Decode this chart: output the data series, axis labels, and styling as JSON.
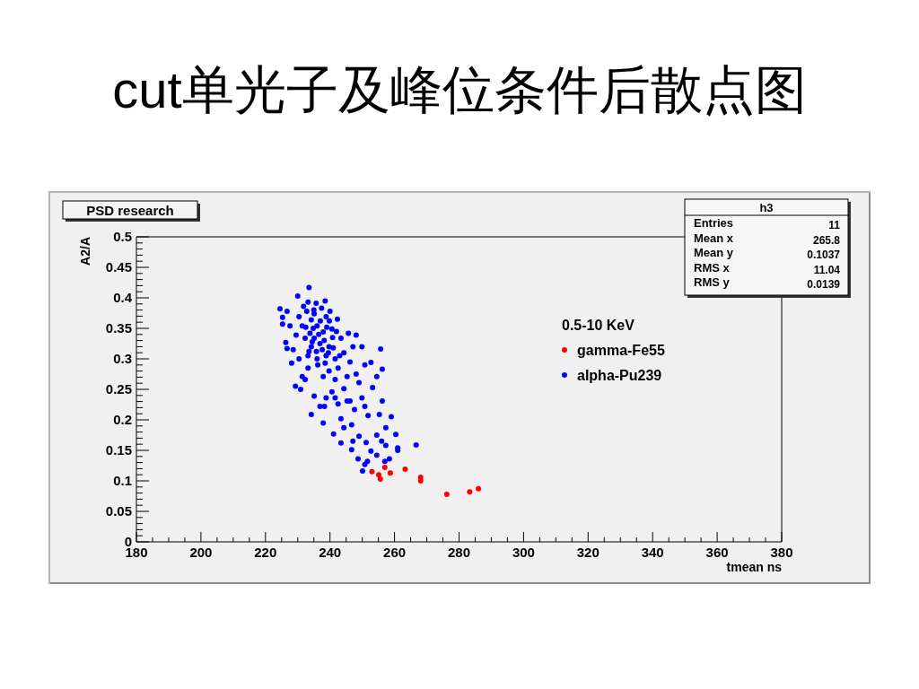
{
  "chart_data": {
    "type": "scatter",
    "title": "cut单光子及峰位条件后散点图",
    "subtitle": "PSD research",
    "xlabel": "tmean ns",
    "ylabel": "A2/A",
    "legend_title": "0.5-10 KeV",
    "annotations": [
      "h3",
      "Entries",
      "11",
      "Mean x",
      "265.8",
      "Mean y",
      "0.1037",
      "RMS x",
      "11.04",
      "RMS y",
      "0.0139"
    ],
    "xlim": [
      180,
      380
    ],
    "ylim": [
      0,
      0.5
    ],
    "xticks": [
      180,
      {
        "value": 185,
        "label": null
      },
      {
        "value": 190,
        "label": null
      },
      {
        "value": 195,
        "label": null
      },
      200,
      {
        "value": 205,
        "label": null
      },
      {
        "value": 210,
        "label": null
      },
      {
        "value": 215,
        "label": null
      },
      220,
      {
        "value": 225,
        "label": null
      },
      {
        "value": 230,
        "label": null
      },
      {
        "value": 235,
        "label": null
      },
      240,
      {
        "value": 245,
        "label": null
      },
      {
        "value": 250,
        "label": null
      },
      {
        "value": 255,
        "label": null
      },
      260,
      {
        "value": 265,
        "label": null
      },
      {
        "value": 270,
        "label": null
      },
      {
        "value": 275,
        "label": null
      },
      280,
      {
        "value": 285,
        "label": null
      },
      {
        "value": 290,
        "label": null
      },
      {
        "value": 295,
        "label": null
      },
      300,
      {
        "value": 305,
        "label": null
      },
      {
        "value": 310,
        "label": null
      },
      {
        "value": 315,
        "label": null
      },
      320,
      {
        "value": 325,
        "label": null
      },
      {
        "value": 330,
        "label": null
      },
      {
        "value": 335,
        "label": null
      },
      340,
      {
        "value": 345,
        "label": null
      },
      {
        "value": 350,
        "label": null
      },
      {
        "value": 355,
        "label": null
      },
      360,
      {
        "value": 365,
        "label": null
      },
      {
        "value": 370,
        "label": null
      },
      {
        "value": 375,
        "label": null
      },
      380
    ],
    "yticks": [
      0,
      {
        "value": 0.01,
        "label": null
      },
      {
        "value": 0.02,
        "label": null
      },
      {
        "value": 0.03,
        "label": null
      },
      {
        "value": 0.04,
        "label": null
      },
      0.05,
      {
        "value": 0.06,
        "label": null
      },
      {
        "value": 0.07,
        "label": null
      },
      {
        "value": 0.08,
        "label": null
      },
      {
        "value": 0.09,
        "label": null
      },
      0.1,
      {
        "value": 0.11,
        "label": null
      },
      {
        "value": 0.12,
        "label": null
      },
      {
        "value": 0.13,
        "label": null
      },
      {
        "value": 0.14,
        "label": null
      },
      0.15,
      {
        "value": 0.16,
        "label": null
      },
      {
        "value": 0.17,
        "label": null
      },
      {
        "value": 0.18,
        "label": null
      },
      {
        "value": 0.19,
        "label": null
      },
      0.2,
      {
        "value": 0.21,
        "label": null
      },
      {
        "value": 0.22,
        "label": null
      },
      {
        "value": 0.23,
        "label": null
      },
      {
        "value": 0.24,
        "label": null
      },
      0.25,
      {
        "value": 0.26,
        "label": null
      },
      {
        "value": 0.27,
        "label": null
      },
      {
        "value": 0.28,
        "label": null
      },
      {
        "value": 0.29,
        "label": null
      },
      0.3,
      {
        "value": 0.31,
        "label": null
      },
      {
        "value": 0.32,
        "label": null
      },
      {
        "value": 0.33,
        "label": null
      },
      {
        "value": 0.34,
        "label": null
      },
      0.35,
      {
        "value": 0.36,
        "label": null
      },
      {
        "value": 0.37,
        "label": null
      },
      {
        "value": 0.38,
        "label": null
      },
      {
        "value": 0.39,
        "label": null
      },
      0.4,
      {
        "value": 0.41,
        "label": null
      },
      {
        "value": 0.42,
        "label": null
      },
      {
        "value": 0.43,
        "label": null
      },
      {
        "value": 0.44,
        "label": null
      },
      0.45,
      {
        "value": 0.46,
        "label": null
      },
      {
        "value": 0.47,
        "label": null
      },
      {
        "value": 0.48,
        "label": null
      },
      {
        "value": 0.49,
        "label": null
      },
      0.5
    ],
    "legend": "top right",
    "marker": "circle",
    "series": [
      {
        "name": "gamma-Fe55",
        "color": "#ff0000",
        "x": [
          253.0,
          257.0,
          255.1,
          255.6,
          258.7,
          263.3,
          268.1,
          268.1,
          276.2,
          283.3,
          286.0
        ],
        "values": [
          0.115,
          0.122,
          0.11,
          0.103,
          0.113,
          0.119,
          0.106,
          0.1,
          0.078,
          0.082,
          0.087
        ]
      },
      {
        "name": "alpha-Pu239",
        "color": "#0000ff",
        "x": [
          233.5,
          230.0,
          224.5,
          238.5,
          233.2,
          235.7,
          226.7,
          225.3,
          225.3,
          242.3,
          240.0,
          226.3,
          226.7,
          228.1,
          255.7,
          248.1,
          245.7,
          249.9,
          256.2,
          254.5,
          252.7,
          256.2,
          253.2,
          229.3,
          230.9,
          231.4,
          235.1,
          236.9,
          234.2,
          237.9,
          241.1,
          243.4,
          246.7,
          248.7,
          250.1,
          250.8,
          251.6,
          254.5,
          257.0,
          258.4,
          261.0,
          261.0,
          266.7,
          260.4,
          259.0,
          257.3,
          256.0,
          252.7,
          251.2,
          255.3,
          251.8,
          249.0,
          246.7,
          244.3,
          250.8,
          245.3,
          241.6,
          243.4,
          238.3,
          247.6,
          254.5,
          257.3,
          247.1,
          234.2,
          236.0,
          237.9,
          235.1,
          236.9,
          239.7,
          234.2,
          238.8,
          241.6,
          236.0,
          233.2,
          232.3,
          231.4,
          230.4,
          232.8,
          235.1,
          243.4,
          244.3,
          246.2,
          242.5,
          239.7,
          237.9,
          241.6,
          245.3,
          248.1,
          249.0,
          244.3,
          240.6,
          238.8,
          242.5,
          246.2,
          249.9,
          250.8,
          233.2,
          232.3,
          228.6,
          229.5,
          227.6,
          230.4,
          247.1,
          240.6,
          238.8,
          237.4,
          231.8,
          234.8,
          237.0,
          239.0,
          236.5,
          233.8,
          238.2,
          240.8,
          235.8,
          237.6,
          239.5,
          241.0,
          234.5,
          236.2,
          238.5,
          243.0,
          232.5,
          235.0,
          239.8,
          242.0,
          233.5
        ],
        "values": [
          0.417,
          0.403,
          0.382,
          0.395,
          0.393,
          0.391,
          0.378,
          0.368,
          0.357,
          0.365,
          0.378,
          0.327,
          0.317,
          0.293,
          0.316,
          0.339,
          0.342,
          0.32,
          0.283,
          0.271,
          0.294,
          0.231,
          0.253,
          0.255,
          0.25,
          0.271,
          0.239,
          0.222,
          0.209,
          0.195,
          0.177,
          0.162,
          0.151,
          0.136,
          0.116,
          0.127,
          0.132,
          0.142,
          0.132,
          0.136,
          0.15,
          0.154,
          0.159,
          0.176,
          0.205,
          0.187,
          0.165,
          0.149,
          0.163,
          0.209,
          0.207,
          0.173,
          0.192,
          0.187,
          0.222,
          0.231,
          0.236,
          0.202,
          0.222,
          0.217,
          0.175,
          0.158,
          0.165,
          0.364,
          0.354,
          0.344,
          0.334,
          0.325,
          0.32,
          0.32,
          0.305,
          0.3,
          0.3,
          0.305,
          0.334,
          0.354,
          0.369,
          0.378,
          0.374,
          0.334,
          0.31,
          0.295,
          0.285,
          0.28,
          0.271,
          0.266,
          0.271,
          0.275,
          0.261,
          0.251,
          0.246,
          0.236,
          0.226,
          0.231,
          0.236,
          0.29,
          0.285,
          0.266,
          0.315,
          0.339,
          0.354,
          0.3,
          0.32,
          0.349,
          0.369,
          0.383,
          0.386,
          0.35,
          0.362,
          0.352,
          0.34,
          0.342,
          0.33,
          0.335,
          0.312,
          0.315,
          0.31,
          0.318,
          0.328,
          0.29,
          0.293,
          0.305,
          0.352,
          0.38,
          0.362,
          0.345,
          0.312
        ]
      }
    ]
  }
}
